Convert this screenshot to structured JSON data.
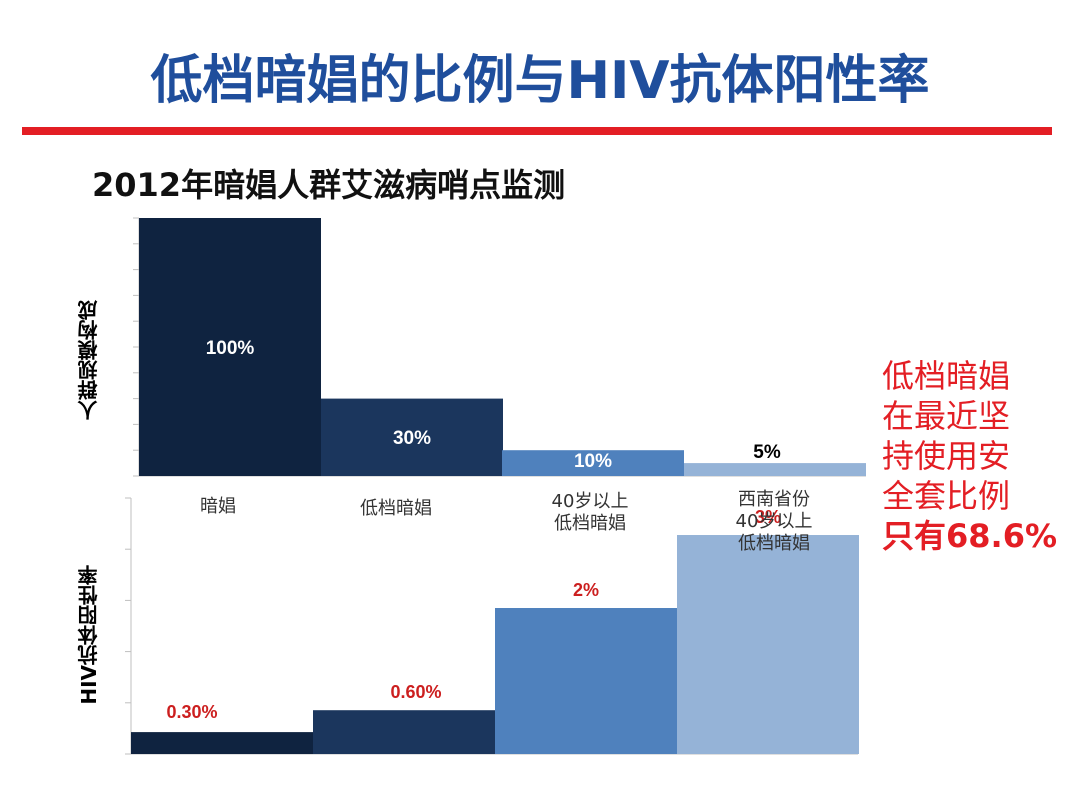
{
  "title": "低档暗娼的比例与HIV抗体阳性率",
  "subtitle": "2012年暗娼人群艾滋病哨点监测",
  "colors": {
    "title": "#1f4e9c",
    "rule": "#e31e24",
    "note": "#e31e24",
    "hiv_label": "#cc1f1f"
  },
  "note_lines": [
    "低档暗娼",
    "在最近坚",
    "持使用安",
    "全套比例",
    "只有68.6%"
  ],
  "categories": [
    "暗娼",
    "低档暗娼",
    "40岁以上\n低档暗娼",
    "西南省份\n40岁以上\n低档暗娼"
  ],
  "chart_data": [
    {
      "type": "bar",
      "name": "population",
      "ylabel": "人群规模构成",
      "categories": [
        "暗娼",
        "低档暗娼",
        "40岁以上低档暗娼",
        "西南省份40岁以上低档暗娼"
      ],
      "values": [
        100,
        30,
        10,
        5
      ],
      "value_labels": [
        "100%",
        "30%",
        "10%",
        "5%"
      ],
      "ylim": [
        0,
        100
      ],
      "bar_colors": [
        "#0f2340",
        "#1b365d",
        "#4f81bd",
        "#95b3d7"
      ]
    },
    {
      "type": "bar",
      "name": "hiv",
      "ylabel": "HIV抗体阳性率",
      "categories": [
        "暗娼",
        "低档暗娼",
        "40岁以上低档暗娼",
        "西南省份40岁以上低档暗娼"
      ],
      "values": [
        0.3,
        0.6,
        2,
        3
      ],
      "value_labels": [
        "0.30%",
        "0.60%",
        "2%",
        "3%"
      ],
      "ylim": [
        0,
        3.5
      ],
      "bar_colors": [
        "#0f2340",
        "#1b365d",
        "#4f81bd",
        "#95b3d7"
      ]
    }
  ]
}
